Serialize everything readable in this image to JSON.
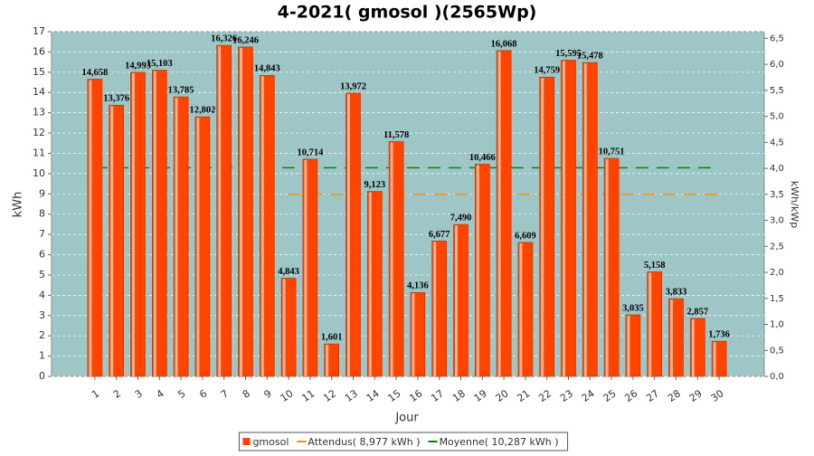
{
  "chart_data": {
    "type": "bar",
    "title": "4-2021( gmosol )(2565Wp)",
    "xlabel": "Jour",
    "ylabel": "kWh",
    "y2label": "kWh/kWp",
    "categories": [
      "1",
      "2",
      "3",
      "4",
      "5",
      "6",
      "7",
      "8",
      "9",
      "10",
      "11",
      "12",
      "13",
      "14",
      "15",
      "16",
      "17",
      "18",
      "19",
      "20",
      "21",
      "22",
      "23",
      "24",
      "25",
      "26",
      "27",
      "28",
      "29",
      "30"
    ],
    "series": [
      {
        "name": "gmosol",
        "type": "bar",
        "color": "#ff4400",
        "values": [
          14.658,
          13.376,
          14.993,
          15.103,
          13.785,
          12.802,
          16.326,
          16.246,
          14.843,
          4.843,
          10.714,
          1.601,
          13.972,
          9.123,
          11.578,
          4.136,
          6.677,
          7.49,
          10.466,
          16.068,
          6.609,
          14.759,
          15.595,
          15.478,
          10.751,
          3.035,
          5.158,
          3.833,
          2.857,
          1.736
        ],
        "value_labels": [
          "14,658",
          "13,376",
          "14,993",
          "15,103",
          "13,785",
          "12,802",
          "16,326",
          "16,246",
          "14,843",
          "4,843",
          "10,714",
          "1,601",
          "13,972",
          "9,123",
          "11,578",
          "4,136",
          "6,677",
          "7,490",
          "10,466",
          "16,068",
          "6,609",
          "14,759",
          "15,595",
          "15,478",
          "10,751",
          "3,035",
          "5,158",
          "3,833",
          "2,857",
          "1,736"
        ]
      },
      {
        "name": "Attendus( 8,977 kWh )",
        "type": "line",
        "color": "#ff8c00",
        "values": [
          null,
          null,
          null,
          null,
          null,
          null,
          null,
          null,
          null,
          8.977,
          8.977,
          8.977,
          8.977,
          8.977,
          8.977,
          8.977,
          8.977,
          8.977,
          8.977,
          8.977,
          8.977,
          8.977,
          8.977,
          8.977,
          8.977,
          8.977,
          8.977,
          8.977,
          8.977,
          8.977
        ]
      },
      {
        "name": "Moyenne( 10,287 kWh )",
        "type": "line",
        "color": "#008000",
        "values": [
          10.287,
          10.287,
          10.287,
          10.287,
          10.287,
          10.287,
          10.287,
          10.287,
          10.287,
          10.287,
          10.287,
          10.287,
          10.287,
          10.287,
          10.287,
          10.287,
          10.287,
          10.287,
          10.287,
          10.287,
          10.287,
          10.287,
          10.287,
          10.287,
          10.287,
          10.287,
          10.287,
          10.287,
          10.287,
          10.287
        ]
      }
    ],
    "ylim": [
      0,
      17
    ],
    "yticks": [
      0,
      1,
      2,
      3,
      4,
      5,
      6,
      7,
      8,
      9,
      10,
      11,
      12,
      13,
      14,
      15,
      16,
      17
    ],
    "y2lim": [
      0,
      6.628
    ],
    "y2ticks": [
      {
        "value": 0,
        "label": "0,0"
      },
      {
        "value": 0.5,
        "label": "0,5"
      },
      {
        "value": 1,
        "label": "1,0"
      },
      {
        "value": 1.5,
        "label": "1,5"
      },
      {
        "value": 2,
        "label": "2,0"
      },
      {
        "value": 2.5,
        "label": "2,5"
      },
      {
        "value": 3,
        "label": "3,0"
      },
      {
        "value": 3.5,
        "label": "3,5"
      },
      {
        "value": 4,
        "label": "4,0"
      },
      {
        "value": 4.5,
        "label": "4,5"
      },
      {
        "value": 5,
        "label": "5,0"
      },
      {
        "value": 5.5,
        "label": "5,5"
      },
      {
        "value": 6,
        "label": "6,0"
      },
      {
        "value": 6.5,
        "label": "6,5"
      }
    ],
    "grid": true,
    "background": "#9fc6c6"
  }
}
